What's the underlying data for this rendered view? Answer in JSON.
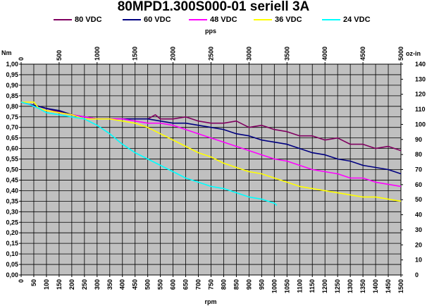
{
  "chart_data": {
    "type": "line",
    "title": "80MPD1.300S000-01 seriell  3A",
    "x_bottom_label": "rpm",
    "x_top_label": "pps",
    "y_left_label": "Nm",
    "y_right_label": "oz-in",
    "x_range_rpm": [
      0,
      1500
    ],
    "x_range_pps": [
      0,
      5000
    ],
    "y_range_nm": [
      0,
      1.0
    ],
    "y_range_ozin": [
      0,
      140
    ],
    "grid": true,
    "legend_position": "top",
    "x_ticks_bottom": [
      "0",
      "50",
      "100",
      "150",
      "200",
      "250",
      "300",
      "350",
      "400",
      "450",
      "500",
      "550",
      "600",
      "650",
      "700",
      "750",
      "800",
      "850",
      "900",
      "950",
      "1000",
      "1050",
      "1100",
      "1150",
      "1200",
      "1250",
      "1300",
      "1350",
      "1400",
      "1450",
      "1500"
    ],
    "x_ticks_top": [
      "0",
      "500",
      "1000",
      "1500",
      "2000",
      "2500",
      "3000",
      "3500",
      "4000",
      "4500",
      "5000"
    ],
    "y_ticks_left": [
      "0,00",
      "0,05",
      "0,10",
      "0,15",
      "0,20",
      "0,25",
      "0,30",
      "0,35",
      "0,40",
      "0,45",
      "0,50",
      "0,55",
      "0,60",
      "0,65",
      "0,70",
      "0,75",
      "0,80",
      "0,85",
      "0,90",
      "0,95",
      "1,00"
    ],
    "y_ticks_right": [
      "0",
      "10",
      "20",
      "30",
      "40",
      "50",
      "60",
      "70",
      "80",
      "90",
      "100",
      "110",
      "120",
      "130",
      "140"
    ],
    "series": [
      {
        "name": "80 VDC",
        "color": "#800060",
        "x": [
          0,
          30,
          70,
          100,
          130,
          170,
          200,
          250,
          300,
          350,
          400,
          450,
          500,
          530,
          550,
          580,
          600,
          650,
          700,
          750,
          800,
          850,
          900,
          950,
          1000,
          1050,
          1100,
          1150,
          1200,
          1250,
          1300,
          1350,
          1400,
          1450,
          1500
        ],
        "y": [
          0.82,
          0.81,
          0.8,
          0.79,
          0.78,
          0.77,
          0.76,
          0.75,
          0.74,
          0.74,
          0.74,
          0.74,
          0.74,
          0.76,
          0.74,
          0.74,
          0.74,
          0.75,
          0.73,
          0.72,
          0.72,
          0.73,
          0.7,
          0.71,
          0.69,
          0.68,
          0.66,
          0.66,
          0.64,
          0.65,
          0.62,
          0.62,
          0.6,
          0.61,
          0.59
        ]
      },
      {
        "name": "60 VDC",
        "color": "#000080",
        "x": [
          0,
          30,
          70,
          100,
          150,
          200,
          250,
          300,
          350,
          400,
          450,
          500,
          550,
          600,
          650,
          700,
          750,
          800,
          850,
          900,
          950,
          1000,
          1050,
          1100,
          1150,
          1200,
          1250,
          1300,
          1350,
          1400,
          1450,
          1500
        ],
        "y": [
          0.82,
          0.81,
          0.8,
          0.79,
          0.78,
          0.76,
          0.75,
          0.74,
          0.74,
          0.74,
          0.74,
          0.74,
          0.73,
          0.72,
          0.72,
          0.71,
          0.7,
          0.69,
          0.67,
          0.66,
          0.64,
          0.63,
          0.62,
          0.6,
          0.58,
          0.57,
          0.55,
          0.54,
          0.52,
          0.51,
          0.5,
          0.48
        ]
      },
      {
        "name": "48 VDC",
        "color": "#FF00FF",
        "x": [
          0,
          30,
          70,
          100,
          150,
          200,
          250,
          300,
          350,
          400,
          450,
          500,
          550,
          600,
          650,
          700,
          750,
          800,
          850,
          900,
          950,
          1000,
          1050,
          1100,
          1150,
          1200,
          1250,
          1300,
          1350,
          1400,
          1450,
          1500
        ],
        "y": [
          0.82,
          0.81,
          0.79,
          0.78,
          0.77,
          0.76,
          0.75,
          0.74,
          0.74,
          0.74,
          0.73,
          0.72,
          0.72,
          0.71,
          0.69,
          0.67,
          0.65,
          0.63,
          0.61,
          0.59,
          0.57,
          0.55,
          0.54,
          0.52,
          0.5,
          0.49,
          0.48,
          0.46,
          0.46,
          0.44,
          0.43,
          0.42
        ]
      },
      {
        "name": "36 VDC",
        "color": "#FFFF00",
        "x": [
          0,
          30,
          50,
          70,
          100,
          150,
          200,
          250,
          300,
          350,
          400,
          450,
          500,
          550,
          600,
          650,
          700,
          750,
          800,
          850,
          900,
          950,
          1000,
          1050,
          1100,
          1150,
          1200,
          1250,
          1300,
          1350,
          1400,
          1450,
          1500
        ],
        "y": [
          0.82,
          0.82,
          0.82,
          0.79,
          0.78,
          0.77,
          0.76,
          0.74,
          0.74,
          0.74,
          0.73,
          0.72,
          0.7,
          0.67,
          0.64,
          0.61,
          0.58,
          0.56,
          0.53,
          0.51,
          0.49,
          0.48,
          0.46,
          0.44,
          0.42,
          0.41,
          0.4,
          0.39,
          0.38,
          0.37,
          0.37,
          0.36,
          0.35
        ]
      },
      {
        "name": "24 VDC",
        "color": "#00FFFF",
        "x": [
          0,
          30,
          70,
          100,
          150,
          200,
          250,
          300,
          350,
          400,
          450,
          500,
          550,
          600,
          650,
          700,
          750,
          800,
          850,
          900,
          950,
          1000,
          1010
        ],
        "y": [
          0.82,
          0.81,
          0.79,
          0.77,
          0.76,
          0.75,
          0.74,
          0.71,
          0.67,
          0.62,
          0.58,
          0.55,
          0.52,
          0.49,
          0.46,
          0.44,
          0.42,
          0.41,
          0.39,
          0.37,
          0.36,
          0.34,
          0.33
        ]
      }
    ]
  }
}
